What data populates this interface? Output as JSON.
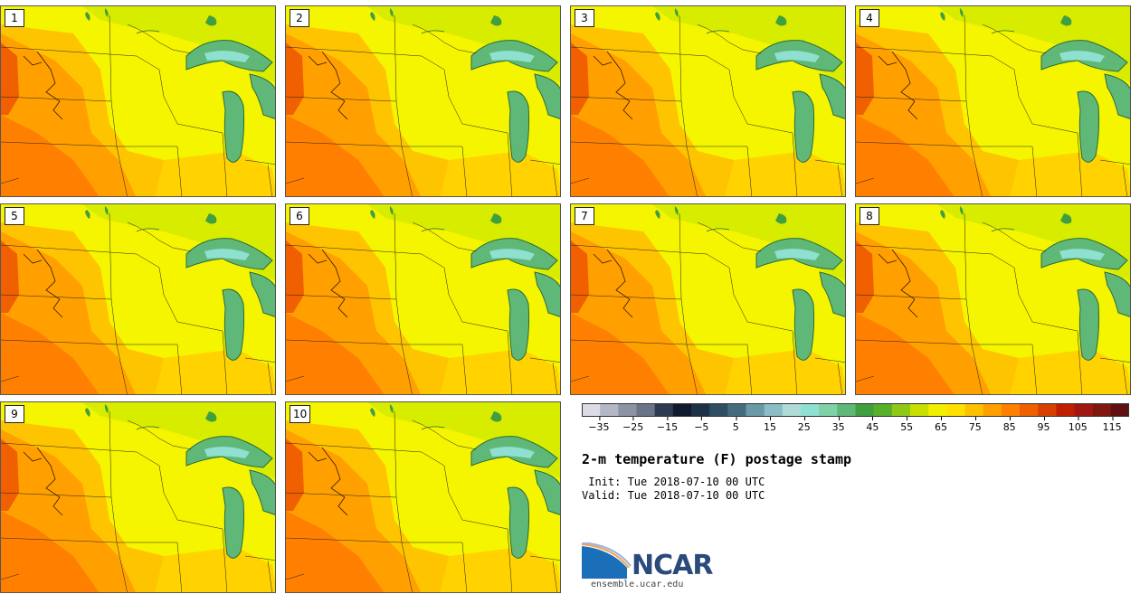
{
  "panels": [
    {
      "label": "1"
    },
    {
      "label": "2"
    },
    {
      "label": "3"
    },
    {
      "label": "4"
    },
    {
      "label": "5"
    },
    {
      "label": "6"
    },
    {
      "label": "7"
    },
    {
      "label": "8"
    },
    {
      "label": "9"
    },
    {
      "label": "10"
    }
  ],
  "colorbar": {
    "ticks": [
      "−35",
      "−25",
      "−15",
      "−5",
      "5",
      "15",
      "25",
      "35",
      "45",
      "55",
      "65",
      "75",
      "85",
      "95",
      "105",
      "115"
    ],
    "colors": [
      "#dcdce6",
      "#b4b8c4",
      "#8c94a4",
      "#6a7488",
      "#2e3a50",
      "#101a2c",
      "#1e3246",
      "#2e4e62",
      "#466c7c",
      "#6a9aa8",
      "#8cbcc4",
      "#b0dcd8",
      "#8fe0d0",
      "#80d0a8",
      "#60b878",
      "#40a040",
      "#58b028",
      "#90c818",
      "#c8e000",
      "#f0f000",
      "#ffe000",
      "#ffc000",
      "#ffa000",
      "#ff8000",
      "#f06000",
      "#d84000",
      "#c02000",
      "#a01810",
      "#801810",
      "#601010"
    ]
  },
  "title": "2-m temperature (F) postage stamp",
  "init_line": " Init: Tue 2018-07-10 00 UTC",
  "valid_line": "Valid: Tue 2018-07-10 00 UTC",
  "logo": {
    "name": "NCAR",
    "url": "ensemble.ucar.edu"
  }
}
